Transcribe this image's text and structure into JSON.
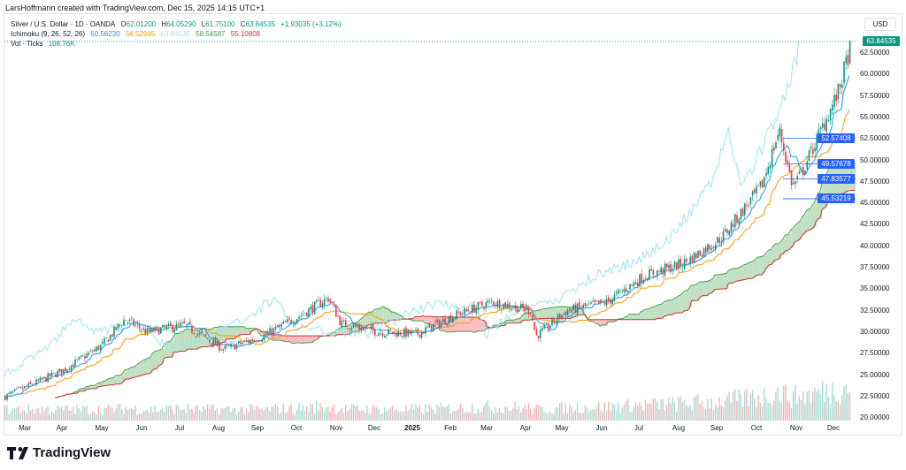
{
  "caption": "LarsHoffmann created with TradingView.com, Dec 15, 2025 14:15 UTC+1",
  "legend": {
    "symbol": "Silver / U.S. Dollar · 1D · OANDA",
    "open_label": "O",
    "open": "62.01200",
    "high_label": "H",
    "high": "64.05290",
    "low_label": "L",
    "low": "61.75100",
    "close_label": "C",
    "close": "63.84535",
    "change": "+1.93035 (+3.12%)",
    "ichimoku_label": "Ichimoku (9, 26, 52, 26)",
    "tenkan": "60.56230",
    "kijun": "56.52945",
    "chikou": "63.84535",
    "spanA": "58.54587",
    "spanB": "55.10808",
    "vol_label": "Vol · Ticks",
    "vol": "108.76K"
  },
  "currency": "USD",
  "price_axis": [
    "62.50000",
    "60.00000",
    "57.50000",
    "55.00000",
    "52.50000",
    "50.00000",
    "47.50000",
    "45.00000",
    "42.50000",
    "40.00000",
    "37.50000",
    "35.00000",
    "32.50000",
    "30.00000",
    "27.50000",
    "25.00000",
    "22.50000",
    "20.00000"
  ],
  "price_tags": [
    {
      "value": "63.84535",
      "color": "#089981"
    },
    {
      "value": "52.57408",
      "color": "#2962ff"
    },
    {
      "value": "49.57678",
      "color": "#2962ff"
    },
    {
      "value": "47.83577",
      "color": "#2962ff"
    },
    {
      "value": "45.53219",
      "color": "#2962ff"
    }
  ],
  "time_axis": [
    "Mar",
    "Apr",
    "May",
    "Jun",
    "Jul",
    "Aug",
    "Sep",
    "Oct",
    "Nov",
    "Dec",
    "2025",
    "Feb",
    "Mar",
    "Apr",
    "May",
    "Jun",
    "Jul",
    "Aug",
    "Sep",
    "Oct",
    "Nov",
    "Dec"
  ],
  "brand": "TradingView",
  "colors": {
    "up": "#089981",
    "down": "#f23645",
    "tenkan": "#2196f3",
    "kijun": "#ff9800",
    "chikou": "#9ee4f0",
    "spanA": "#43a047",
    "spanB": "#d32f2f"
  },
  "chart_data": {
    "type": "candlestick",
    "title": "Silver / U.S. Dollar · 1D · OANDA",
    "ylim": [
      20,
      65
    ],
    "monthly_path": [
      {
        "t": "Mar 2024",
        "p": 22.5
      },
      {
        "t": "Apr 2024",
        "p": 25.5
      },
      {
        "t": "May 2024",
        "p": 28.5
      },
      {
        "t": "late May 2024",
        "p": 31.5
      },
      {
        "t": "Jun 2024",
        "p": 30
      },
      {
        "t": "Jul 2024",
        "p": 30.8
      },
      {
        "t": "Aug 2024",
        "p": 28
      },
      {
        "t": "Sep 2024",
        "p": 29.5
      },
      {
        "t": "Oct 2024",
        "p": 32
      },
      {
        "t": "late Oct 2024",
        "p": 34
      },
      {
        "t": "Nov 2024",
        "p": 31
      },
      {
        "t": "Dec 2024",
        "p": 30
      },
      {
        "t": "Jan 2025",
        "p": 29.8
      },
      {
        "t": "Feb 2025",
        "p": 32
      },
      {
        "t": "Mar 2025",
        "p": 33.5
      },
      {
        "t": "Apr 2025",
        "p": 32.5
      },
      {
        "t": "early Apr 2025",
        "p": 29.5
      },
      {
        "t": "May 2025",
        "p": 32.5
      },
      {
        "t": "Jun 2025",
        "p": 33.5
      },
      {
        "t": "Jul 2025",
        "p": 36.5
      },
      {
        "t": "Aug 2025",
        "p": 38
      },
      {
        "t": "Sep 2025",
        "p": 41
      },
      {
        "t": "Oct 2025",
        "p": 47
      },
      {
        "t": "mid Oct 2025",
        "p": 53.5
      },
      {
        "t": "late Oct 2025",
        "p": 47
      },
      {
        "t": "Nov 2025",
        "p": 48.5
      },
      {
        "t": "Dec 2025",
        "p": 58
      },
      {
        "t": "Dec 15 2025",
        "p": 63.85
      }
    ]
  }
}
